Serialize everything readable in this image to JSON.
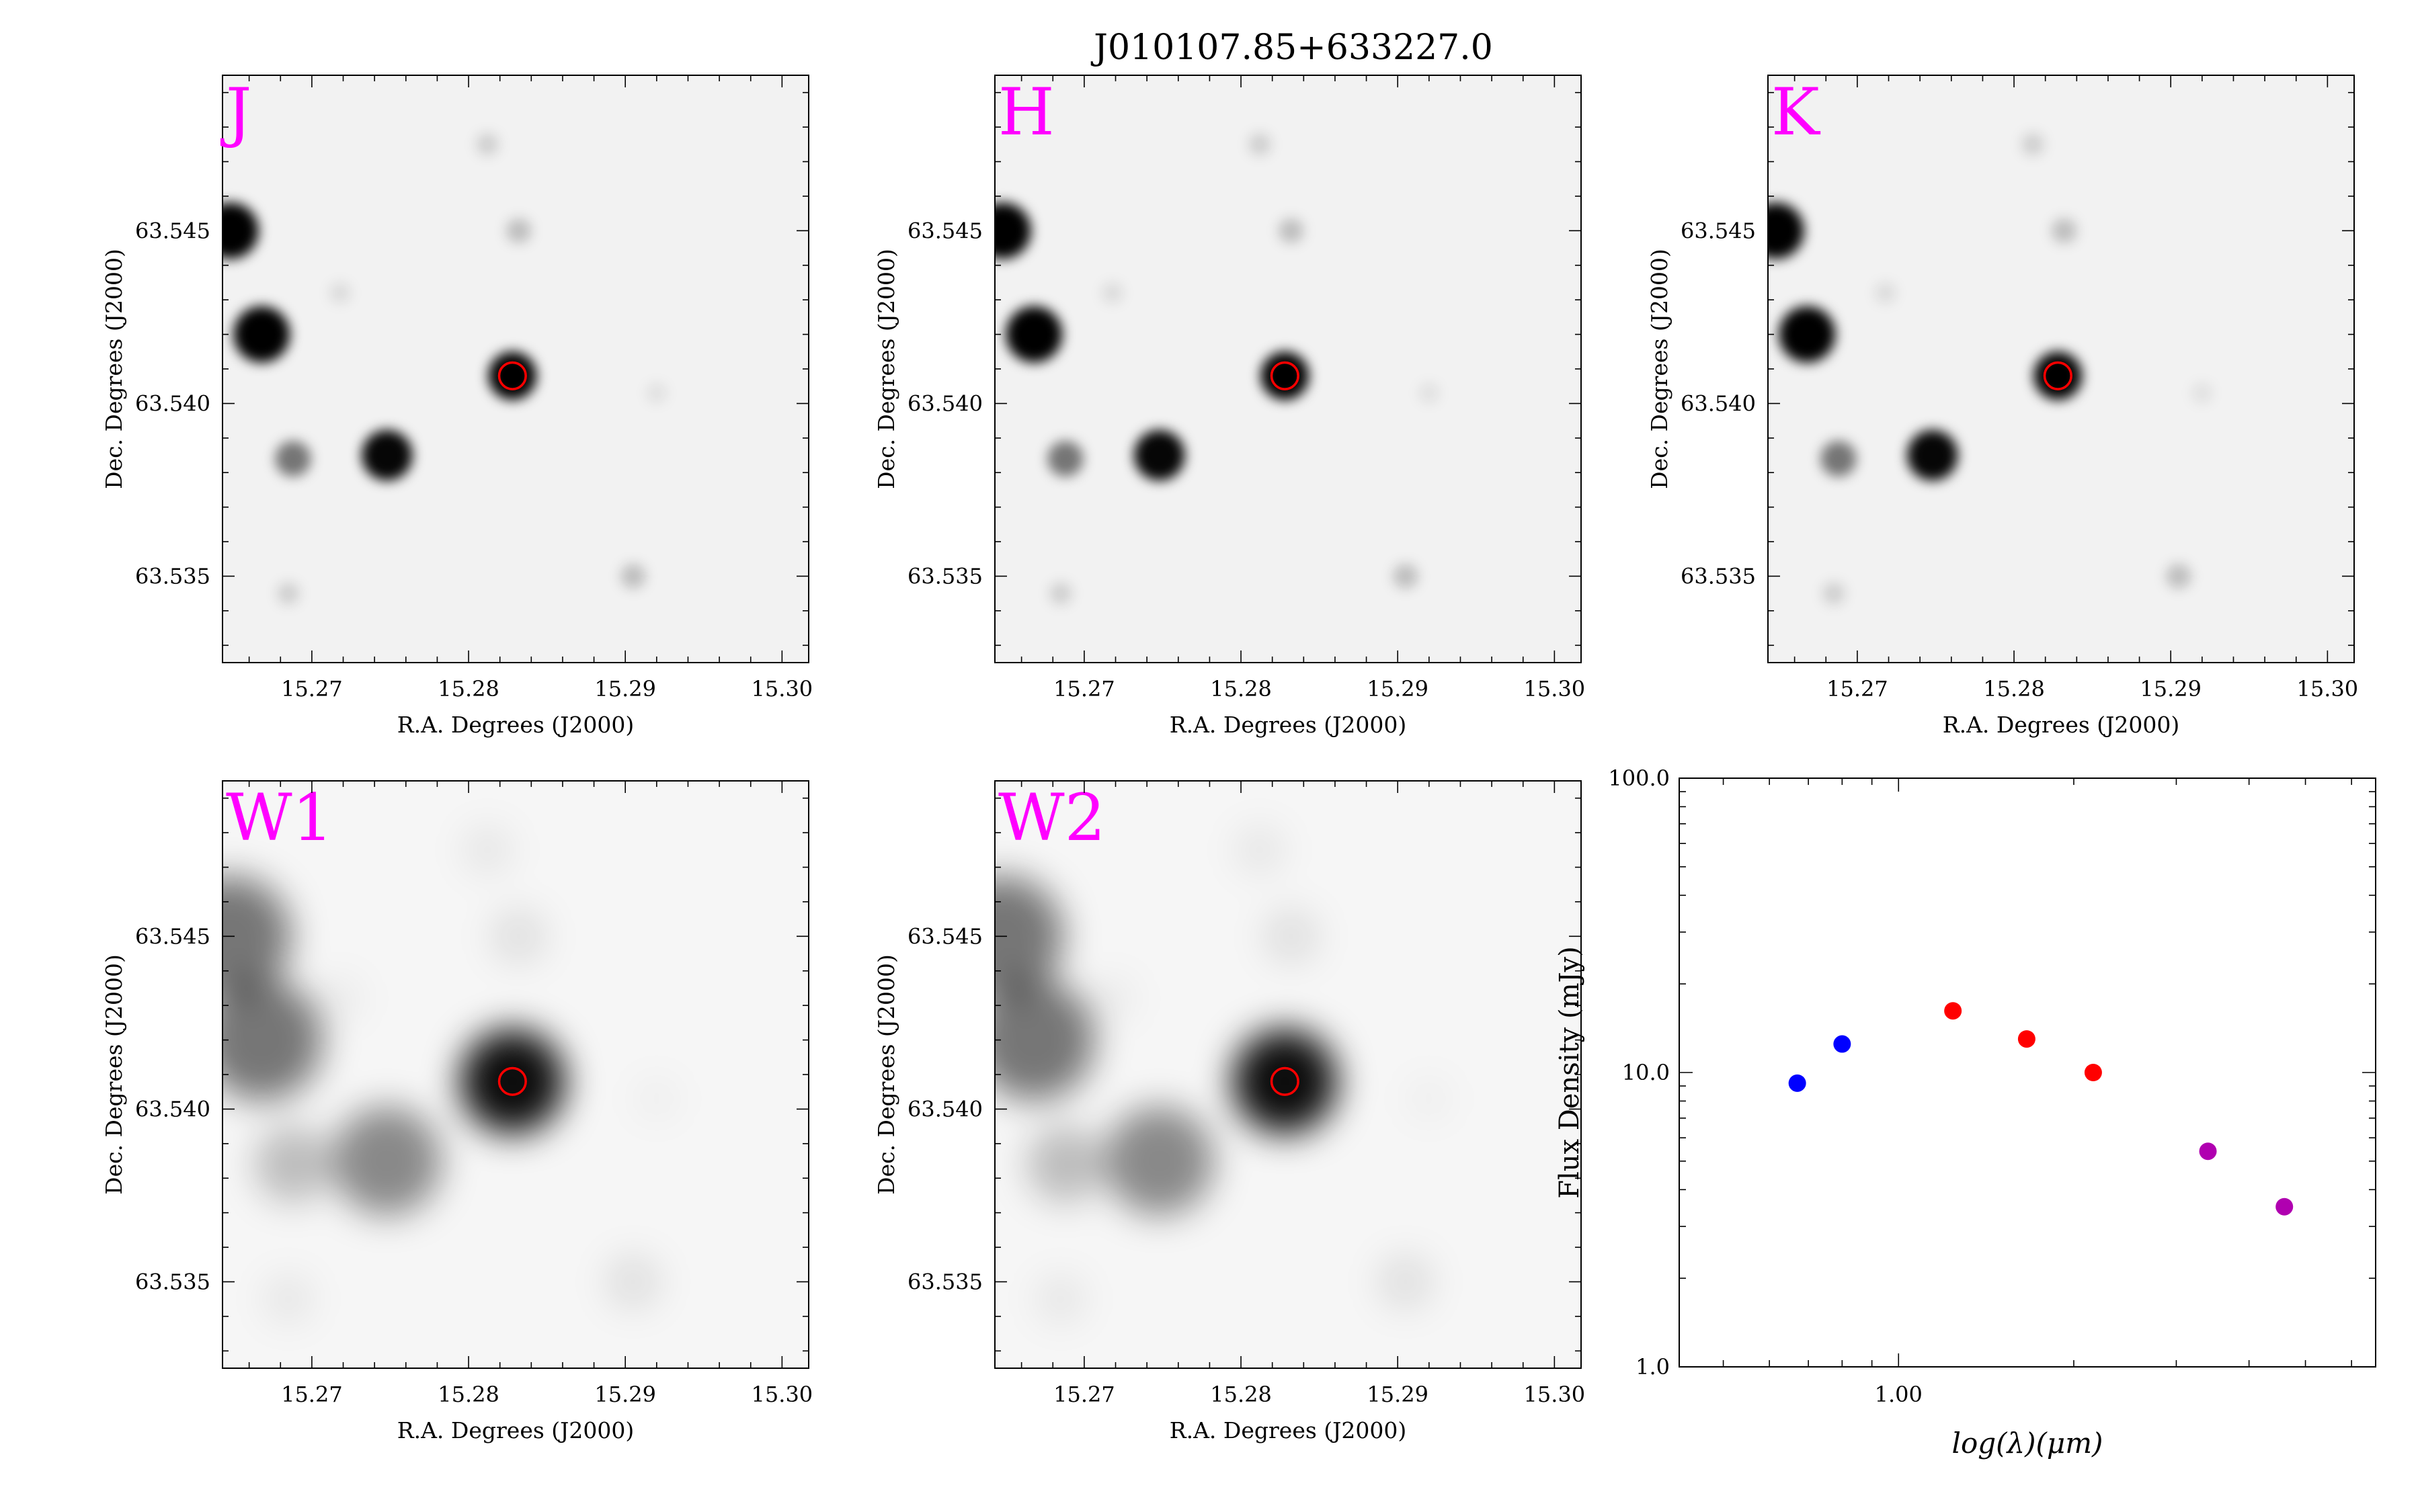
{
  "figure": {
    "title": "J010107.85+633227.0"
  },
  "panel_axes": {
    "xlabel": "R.A. Degrees (J2000)",
    "ylabel": "Dec. Degrees (J2000)",
    "xlim": [
      15.2643,
      15.3017
    ],
    "ylim": [
      63.5325,
      63.5495
    ],
    "xticks": [
      "15.27",
      "15.28",
      "15.29",
      "15.30"
    ],
    "xtick_values": [
      15.27,
      15.28,
      15.29,
      15.3
    ],
    "yticks": [
      "63.535",
      "63.540",
      "63.545"
    ],
    "ytick_values": [
      63.535,
      63.54,
      63.545
    ],
    "target_marker": {
      "ra": 15.2828,
      "dec": 63.5408,
      "color": "#ff0000",
      "radius_deg": 0.00085
    }
  },
  "panels": [
    {
      "band": "J",
      "label_color": "#ff00ff",
      "style": "sharp"
    },
    {
      "band": "H",
      "label_color": "#ff00ff",
      "style": "sharp"
    },
    {
      "band": "K",
      "label_color": "#ff00ff",
      "style": "sharp"
    },
    {
      "band": "W1",
      "label_color": "#ff00ff",
      "style": "blurry"
    },
    {
      "band": "W2",
      "label_color": "#ff00ff",
      "style": "blurry"
    }
  ],
  "sources": [
    {
      "ra": 15.2648,
      "dec": 63.545,
      "intensity": 1.0
    },
    {
      "ra": 15.2668,
      "dec": 63.542,
      "intensity": 1.0
    },
    {
      "ra": 15.2828,
      "dec": 63.5408,
      "intensity": 1.0
    },
    {
      "ra": 15.2748,
      "dec": 63.5385,
      "intensity": 0.85
    },
    {
      "ra": 15.2688,
      "dec": 63.5384,
      "intensity": 0.45
    },
    {
      "ra": 15.2812,
      "dec": 63.5475,
      "intensity": 0.12
    },
    {
      "ra": 15.2832,
      "dec": 63.545,
      "intensity": 0.18
    },
    {
      "ra": 15.2905,
      "dec": 63.535,
      "intensity": 0.18
    },
    {
      "ra": 15.2685,
      "dec": 63.5345,
      "intensity": 0.12
    },
    {
      "ra": 15.2718,
      "dec": 63.5432,
      "intensity": 0.08
    },
    {
      "ra": 15.292,
      "dec": 63.5403,
      "intensity": 0.06
    }
  ],
  "chart_data": {
    "type": "scatter",
    "title": "",
    "xlabel": "log(λ)(μm)",
    "ylabel": "Flux Density (mJy)",
    "xscale": "log",
    "yscale": "log",
    "xlim": [
      0.42,
      6.6
    ],
    "ylim": [
      1.0,
      100.0
    ],
    "xticks": [
      "1.00"
    ],
    "xtick_values": [
      1.0
    ],
    "yticks": [
      "1.0",
      "10.0",
      "100.0"
    ],
    "ytick_values": [
      1.0,
      10.0,
      100.0
    ],
    "series": [
      {
        "color": "#0000ff",
        "x": [
          0.67,
          0.8
        ],
        "y": [
          9.2,
          12.5
        ]
      },
      {
        "color": "#ff0000",
        "x": [
          1.24,
          1.66,
          2.16
        ],
        "y": [
          16.2,
          13.0,
          10.0
        ]
      },
      {
        "color": "#b000b0",
        "x": [
          3.4,
          4.6
        ],
        "y": [
          5.4,
          3.5
        ]
      }
    ]
  }
}
